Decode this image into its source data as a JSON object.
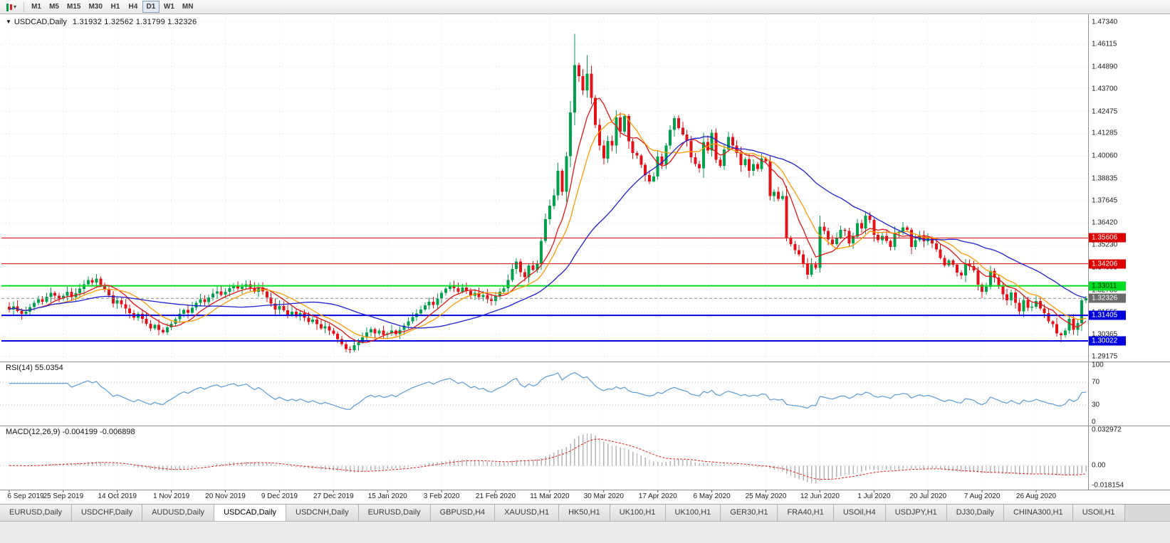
{
  "toolbar": {
    "chart_type_icon": "candlestick-chart",
    "dropdown_icon": "▾",
    "timeframes": [
      "M1",
      "M5",
      "M15",
      "M30",
      "H1",
      "H4",
      "D1",
      "W1",
      "MN"
    ],
    "active_timeframe": "D1"
  },
  "chart": {
    "context_icon": "▼",
    "title_symbol": "USDCAD,Daily",
    "title_ohlc": "1.31932 1.32562 1.31799 1.32326"
  },
  "panels": {
    "rsi": {
      "header": "RSI(14) 55.0354",
      "scale": [
        "100",
        "70",
        "30",
        "0"
      ]
    },
    "macd": {
      "header": "MACD(12,26,9) -0.004199 -0.006898",
      "scale": [
        "0.032972",
        "0.00",
        "-0.018154"
      ]
    }
  },
  "chart_data": {
    "type": "candlestick",
    "symbol": "USDCAD",
    "timeframe": "Daily",
    "ohlc_current": {
      "open": 1.31932,
      "high": 1.32562,
      "low": 1.31799,
      "close": 1.32326
    },
    "y_range": [
      1.289,
      1.4775
    ],
    "y_ticks": [
      "1.47340",
      "1.46115",
      "1.44890",
      "1.43700",
      "1.42475",
      "1.41285",
      "1.40060",
      "1.38835",
      "1.37645",
      "1.36420",
      "1.35230",
      "1.34005",
      "1.32780",
      "1.31555",
      "1.30365",
      "1.29175"
    ],
    "x_labels": [
      "6 Sep 2019",
      "25 Sep 2019",
      "14 Oct 2019",
      "1 Nov 2019",
      "20 Nov 2019",
      "9 Dec 2019",
      "27 Dec 2019",
      "15 Jan 2020",
      "3 Feb 2020",
      "21 Feb 2020",
      "11 Mar 2020",
      "30 Mar 2020",
      "17 Apr 2020",
      "6 May 2020",
      "25 May 2020",
      "12 Jun 2020",
      "1 Jul 2020",
      "20 Jul 2020",
      "7 Aug 2020",
      "26 Aug 2020"
    ],
    "candles_per_x_label": 13,
    "closes": [
      1.3172,
      1.319,
      1.3165,
      1.3148,
      1.316,
      1.3185,
      1.3208,
      1.3228,
      1.3215,
      1.3242,
      1.3262,
      1.3248,
      1.3232,
      1.3248,
      1.3268,
      1.324,
      1.326,
      1.3285,
      1.331,
      1.3332,
      1.3318,
      1.334,
      1.3305,
      1.3282,
      1.325,
      1.3205,
      1.3222,
      1.32,
      1.3178,
      1.3152,
      1.3128,
      1.3148,
      1.3122,
      1.3095,
      1.307,
      1.3088,
      1.3062,
      1.3048,
      1.3075,
      1.3095,
      1.312,
      1.3148,
      1.317,
      1.3155,
      1.3182,
      1.3208,
      1.3228,
      1.3212,
      1.3238,
      1.3258,
      1.327,
      1.3252,
      1.3268,
      1.3288,
      1.3302,
      1.3285,
      1.3295,
      1.331,
      1.329,
      1.3268,
      1.3292,
      1.327,
      1.3238,
      1.3205,
      1.3172,
      1.3192,
      1.3168,
      1.3145,
      1.316,
      1.3135,
      1.3152,
      1.3128,
      1.3105,
      1.3118,
      1.3092,
      1.307,
      1.3082,
      1.3058,
      1.304,
      1.3012,
      1.2985,
      1.2958,
      1.2952,
      1.2978,
      1.2995,
      1.3022,
      1.3048,
      1.3065,
      1.3042,
      1.3058,
      1.3035,
      1.3042,
      1.3058,
      1.3038,
      1.3062,
      1.3085,
      1.3108,
      1.3132,
      1.315,
      1.3172,
      1.3195,
      1.3215,
      1.3198,
      1.3232,
      1.3262,
      1.3285,
      1.3305,
      1.3288,
      1.3268,
      1.3292,
      1.3272,
      1.3248,
      1.3262,
      1.324,
      1.3252,
      1.3228,
      1.3218,
      1.3245,
      1.3268,
      1.3288,
      1.3332,
      1.3392,
      1.3432,
      1.3375,
      1.3348,
      1.3412,
      1.3388,
      1.3422,
      1.3545,
      1.3662,
      1.3735,
      1.3792,
      1.3925,
      1.3812,
      1.4005,
      1.4242,
      1.4498,
      1.4438,
      1.4362,
      1.4452,
      1.4322,
      1.4175,
      1.4062,
      1.3992,
      1.4088,
      1.4062,
      1.4215,
      1.4138,
      1.4222,
      1.4085,
      1.4022,
      1.4008,
      1.3958,
      1.3902,
      1.3868,
      1.3895,
      1.4002,
      1.3958,
      1.4062,
      1.4148,
      1.4212,
      1.4158,
      1.4122,
      1.4088,
      1.3998,
      1.3962,
      1.3938,
      1.4082,
      1.4035,
      1.4132,
      1.3985,
      1.3952,
      1.4042,
      1.4108,
      1.4062,
      1.4022,
      1.3955,
      1.3988,
      1.3925,
      1.3962,
      1.3935,
      1.3992,
      1.3978,
      1.3788,
      1.3812,
      1.3772,
      1.3788,
      1.3562,
      1.3528,
      1.3495,
      1.3472,
      1.3422,
      1.3362,
      1.3418,
      1.3398,
      1.3622,
      1.3598,
      1.3552,
      1.3528,
      1.3562,
      1.3605,
      1.3598,
      1.3532,
      1.3568,
      1.3642,
      1.3612,
      1.3682,
      1.3658,
      1.3578,
      1.3548,
      1.3572,
      1.3545,
      1.3512,
      1.3588,
      1.3595,
      1.3618,
      1.3605,
      1.3512,
      1.3548,
      1.3575,
      1.3542,
      1.3562,
      1.3532,
      1.3498,
      1.3452,
      1.3412,
      1.3438,
      1.3415,
      1.3372,
      1.3358,
      1.3422,
      1.3408,
      1.3385,
      1.3308,
      1.3268,
      1.3295,
      1.3382,
      1.3345,
      1.3302,
      1.3255,
      1.3222,
      1.3265,
      1.3208,
      1.3162,
      1.3225,
      1.3182,
      1.3188,
      1.3218,
      1.3178,
      1.3152,
      1.3108,
      1.3092,
      1.3042,
      1.3032,
      1.3058,
      1.3122,
      1.3062,
      1.3098,
      1.3222,
      1.3233
    ],
    "high_overrides": {
      "136": 1.4668,
      "139": 1.4552
    },
    "low_overrides": {
      "253": 1.2994
    },
    "levels": [
      {
        "label": "1.35606",
        "price": 1.35606,
        "color": "#dd0000",
        "width": 1,
        "text_color": "#ffffff"
      },
      {
        "label": "1.34206",
        "price": 1.34206,
        "color": "#dd0000",
        "width": 1,
        "text_color": "#ffffff"
      },
      {
        "label": "1.33011",
        "price": 1.33011,
        "color": "#00dd22",
        "width": 2,
        "text_color": "#003300"
      },
      {
        "label": "1.31405",
        "price": 1.31405,
        "color": "#0000dd",
        "width": 2,
        "text_color": "#ffffff"
      },
      {
        "label": "1.30022",
        "price": 1.30022,
        "color": "#0000dd",
        "width": 2,
        "text_color": "#ffffff"
      }
    ],
    "current_price": {
      "label": "1.32326",
      "price": 1.32326,
      "badge_color": "#6b6b6b",
      "text_color": "#ffffff"
    },
    "moving_averages": [
      {
        "period": 8,
        "color": "#e01515"
      },
      {
        "period": 13,
        "color": "#ff9a00"
      },
      {
        "period": 34,
        "color": "#1f1fd2"
      }
    ],
    "indicators": {
      "rsi": {
        "period": 14,
        "current": 55.0354,
        "levels": [
          70,
          30
        ],
        "range": [
          0,
          100
        ],
        "color": "#5b9bd5"
      },
      "macd": {
        "fast": 12,
        "slow": 26,
        "signal": 9,
        "current_macd": -0.004199,
        "current_signal": -0.006898,
        "scale_max": 0.032972,
        "scale_min": -0.018154,
        "hist_color": "#b4b4b4",
        "signal_color": "#e02020"
      }
    },
    "candle_up_color": "#00a14b",
    "candle_down_color": "#e31219"
  },
  "tabs": {
    "items": [
      "EURUSD,Daily",
      "USDCHF,Daily",
      "AUDUSD,Daily",
      "USDCAD,Daily",
      "USDCNH,Daily",
      "EURUSD,Daily",
      "GBPUSD,H4",
      "XAUUSD,H1",
      "HK50,H1",
      "UK100,H1",
      "UK100,H1",
      "GER30,H1",
      "FRA40,H1",
      "USOil,H4",
      "USDJPY,H1",
      "DJ30,Daily",
      "CHINA300,H1",
      "USOil,H1"
    ],
    "active_index": 3
  }
}
